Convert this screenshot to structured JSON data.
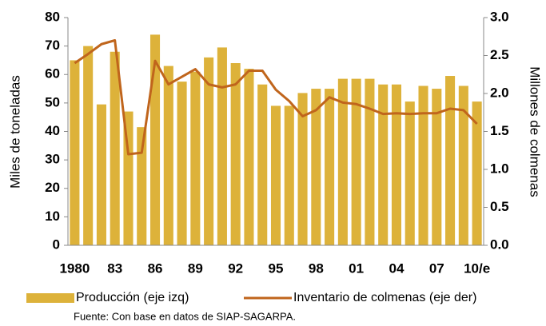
{
  "chart_data": {
    "type": "bar_line",
    "categories": [
      "1980",
      null,
      null,
      "83",
      null,
      null,
      "86",
      null,
      null,
      "89",
      null,
      null,
      "92",
      null,
      null,
      "95",
      null,
      null,
      "98",
      null,
      null,
      "01",
      null,
      null,
      "04",
      null,
      null,
      "07",
      null,
      null,
      "10/e"
    ],
    "series": [
      {
        "name": "Producción (eje izq)",
        "type": "bar",
        "color": "#ddb23a",
        "axis": "y",
        "values": [
          65,
          70,
          49.5,
          68,
          47,
          41.5,
          74,
          63,
          57.5,
          61,
          66,
          69.5,
          64,
          62,
          56.5,
          49,
          49,
          53.5,
          55,
          55,
          58.5,
          58.5,
          58.5,
          56.5,
          56.5,
          50.5,
          56,
          55,
          59.5,
          56,
          50.5
        ]
      },
      {
        "name": "Inventario de colmenas (eje der)",
        "type": "line",
        "color": "#c0651c",
        "axis": "y2",
        "values": [
          2.4,
          2.52,
          2.65,
          2.7,
          1.2,
          1.22,
          2.43,
          2.12,
          2.22,
          2.32,
          2.12,
          2.08,
          2.12,
          2.3,
          2.3,
          2.05,
          1.9,
          1.7,
          1.78,
          1.95,
          1.88,
          1.86,
          1.8,
          1.73,
          1.74,
          1.73,
          1.74,
          1.74,
          1.8,
          1.78,
          1.6
        ]
      }
    ],
    "ylabel": "Miles de toneladas",
    "y2label": "Millones de colmenas",
    "ylim": [
      0,
      80
    ],
    "yticks": [
      0,
      10,
      20,
      30,
      40,
      50,
      60,
      70,
      80
    ],
    "y2lim": [
      0,
      3
    ],
    "y2ticks": [
      {
        "value": 0,
        "label": "0.0"
      },
      0.5,
      {
        "value": 1,
        "label": "1.0"
      },
      1.5,
      {
        "value": 2,
        "label": "2.0"
      },
      2.5,
      {
        "value": 3,
        "label": "3.0"
      }
    ],
    "source": "Fuente: Con base en datos de SIAP-SAGARPA."
  }
}
